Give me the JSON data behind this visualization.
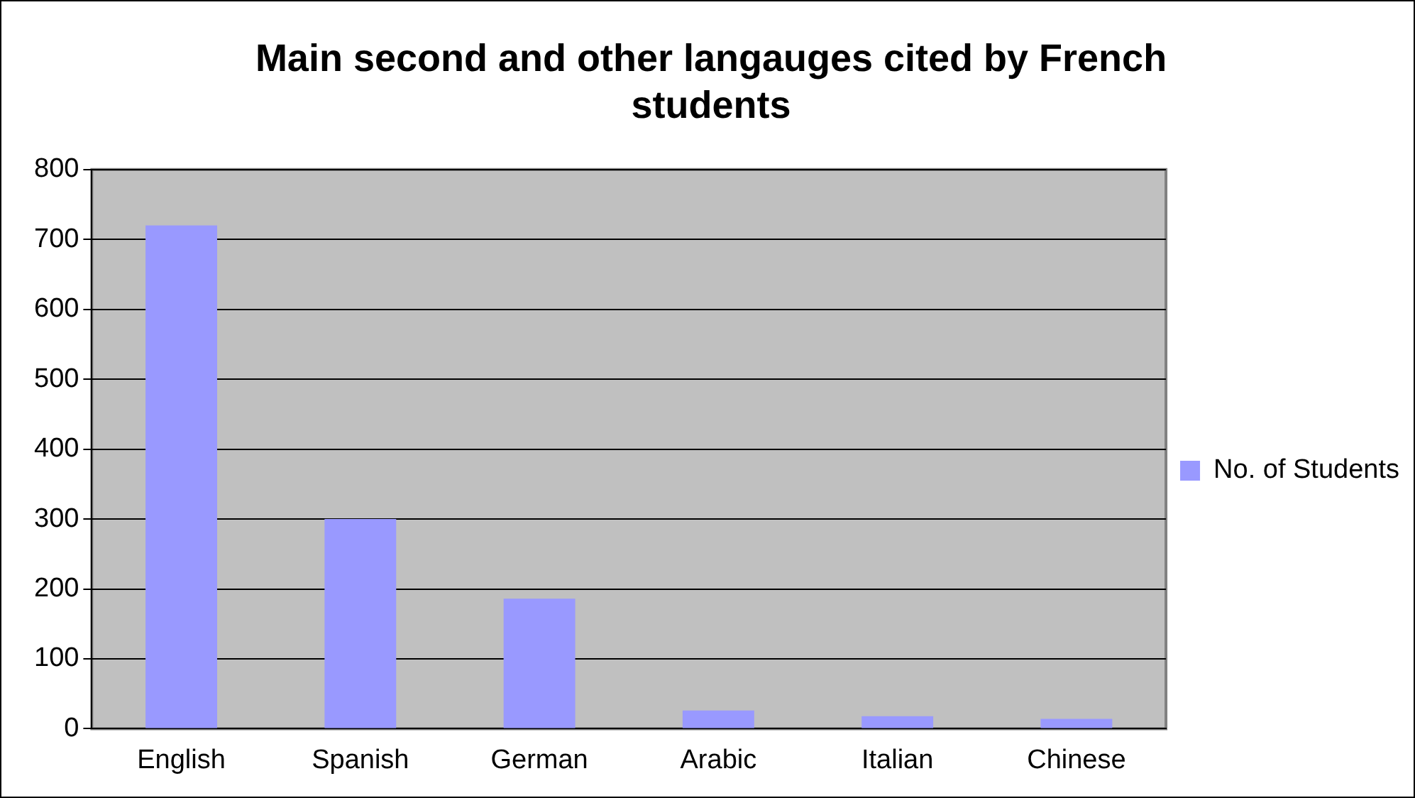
{
  "chart_data": {
    "type": "bar",
    "title": "Main second and other langauges cited by French students",
    "categories": [
      "English",
      "Spanish",
      "German",
      "Arabic",
      "Italian",
      "Chinese"
    ],
    "series": [
      {
        "name": "No. of Students",
        "color": "#9999ff",
        "values": [
          720,
          300,
          186,
          26,
          18,
          14
        ]
      }
    ],
    "ylim": [
      0,
      800
    ],
    "yticks": [
      0,
      100,
      200,
      300,
      400,
      500,
      600,
      700,
      800
    ],
    "grid": "y",
    "legend": "right"
  }
}
